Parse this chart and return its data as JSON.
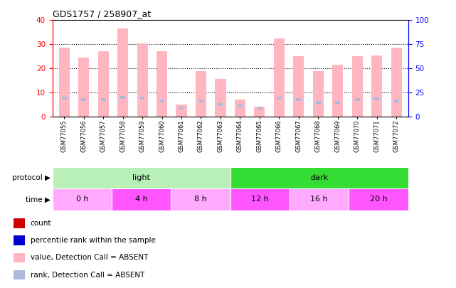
{
  "title": "GDS1757 / 258907_at",
  "samples": [
    "GSM77055",
    "GSM77056",
    "GSM77057",
    "GSM77058",
    "GSM77059",
    "GSM77060",
    "GSM77061",
    "GSM77062",
    "GSM77063",
    "GSM77064",
    "GSM77065",
    "GSM77066",
    "GSM77067",
    "GSM77068",
    "GSM77069",
    "GSM77070",
    "GSM77071",
    "GSM77072"
  ],
  "values_absent": [
    28.5,
    24.5,
    27.0,
    36.5,
    30.5,
    27.0,
    5.0,
    19.0,
    15.5,
    7.0,
    4.0,
    32.5,
    25.0,
    19.0,
    21.5,
    25.0,
    25.5,
    28.5
  ],
  "ranks_absent": [
    19.0,
    18.0,
    18.0,
    20.0,
    19.0,
    16.5,
    9.0,
    16.5,
    12.5,
    11.0,
    9.0,
    19.5,
    17.5,
    15.0,
    15.0,
    17.5,
    18.5,
    16.5
  ],
  "ylim_left": [
    0,
    40
  ],
  "ylim_right": [
    0,
    100
  ],
  "yticks_left": [
    0,
    10,
    20,
    30,
    40
  ],
  "yticks_right": [
    0,
    25,
    50,
    75,
    100
  ],
  "protocol_groups": [
    {
      "label": "light",
      "start": 0,
      "end": 9,
      "color": "#B8F0B8"
    },
    {
      "label": "dark",
      "start": 9,
      "end": 18,
      "color": "#33DD33"
    }
  ],
  "time_groups": [
    {
      "label": "0 h",
      "start": 0,
      "end": 3,
      "color": "#FFAAFF"
    },
    {
      "label": "4 h",
      "start": 3,
      "end": 6,
      "color": "#FF55FF"
    },
    {
      "label": "8 h",
      "start": 6,
      "end": 9,
      "color": "#FFAAFF"
    },
    {
      "label": "12 h",
      "start": 9,
      "end": 12,
      "color": "#FF55FF"
    },
    {
      "label": "16 h",
      "start": 12,
      "end": 15,
      "color": "#FFAAFF"
    },
    {
      "label": "20 h",
      "start": 15,
      "end": 18,
      "color": "#FF55FF"
    }
  ],
  "bar_color_absent": "#FFB6C1",
  "rank_color_absent": "#AABBDD",
  "bg_color": "#FFFFFF",
  "axis_left_color": "#FF0000",
  "axis_right_color": "#0000FF",
  "legend_items": [
    {
      "color": "#CC0000",
      "label": "count",
      "marker": "s"
    },
    {
      "color": "#0000CC",
      "label": "percentile rank within the sample",
      "marker": "s"
    },
    {
      "color": "#FFB6C1",
      "label": "value, Detection Call = ABSENT",
      "marker": "s"
    },
    {
      "color": "#AABBDD",
      "label": "rank, Detection Call = ABSENT",
      "marker": "s"
    }
  ]
}
